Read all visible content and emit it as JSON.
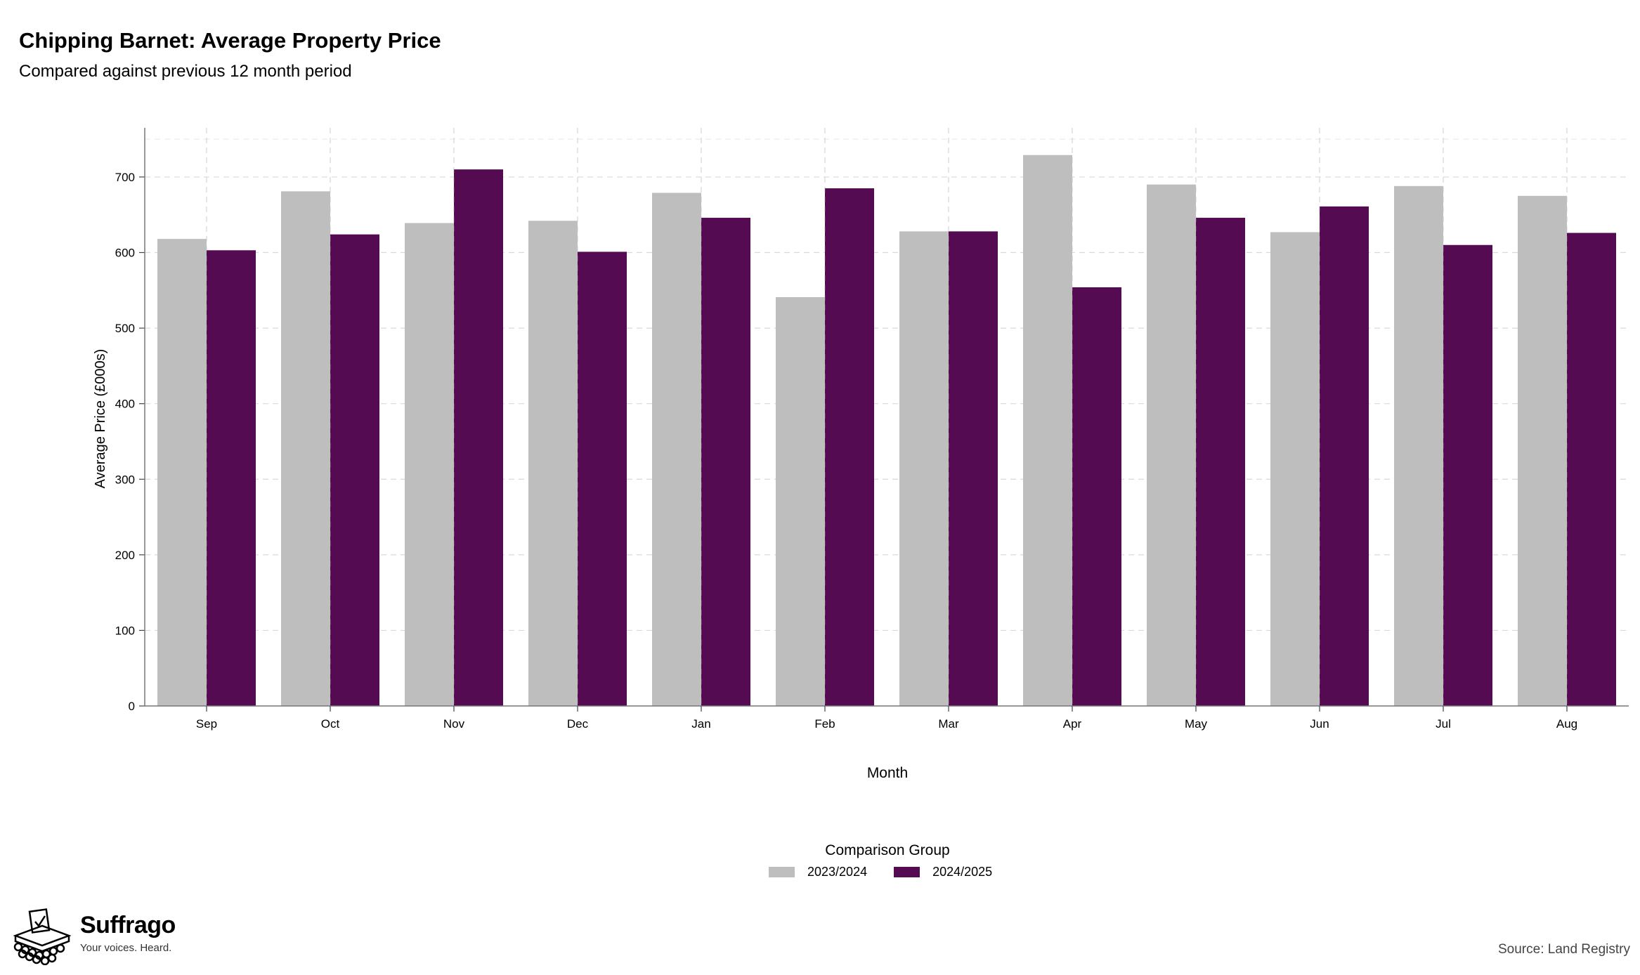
{
  "header": {
    "title": "Chipping Barnet: Average Property Price",
    "subtitle": "Compared against previous 12 month period"
  },
  "chart_data": {
    "type": "bar",
    "title": "Chipping Barnet: Average Property Price",
    "subtitle": "Compared against previous 12 month period",
    "xlabel": "Month",
    "ylabel": "Average Price (£000s)",
    "ylim": [
      0,
      765
    ],
    "yticks": [
      0,
      100,
      200,
      300,
      400,
      500,
      600,
      700
    ],
    "grid": true,
    "categories": [
      "Sep",
      "Oct",
      "Nov",
      "Dec",
      "Jan",
      "Feb",
      "Mar",
      "Apr",
      "May",
      "Jun",
      "Jul",
      "Aug"
    ],
    "series": [
      {
        "name": "2023/2024",
        "color": "#bebebe",
        "values": [
          618,
          681,
          639,
          642,
          679,
          541,
          628,
          729,
          690,
          627,
          688,
          675
        ]
      },
      {
        "name": "2024/2025",
        "color": "#550b52",
        "values": [
          603,
          624,
          710,
          601,
          646,
          685,
          628,
          554,
          646,
          661,
          610,
          626
        ]
      }
    ],
    "legend": {
      "title": "Comparison Group",
      "position": "bottom"
    }
  },
  "logo": {
    "brand": "Suffrago",
    "tagline": "Your voices. Heard.",
    "icon": "ballot-box-icon"
  },
  "source": "Source: Land Registry"
}
